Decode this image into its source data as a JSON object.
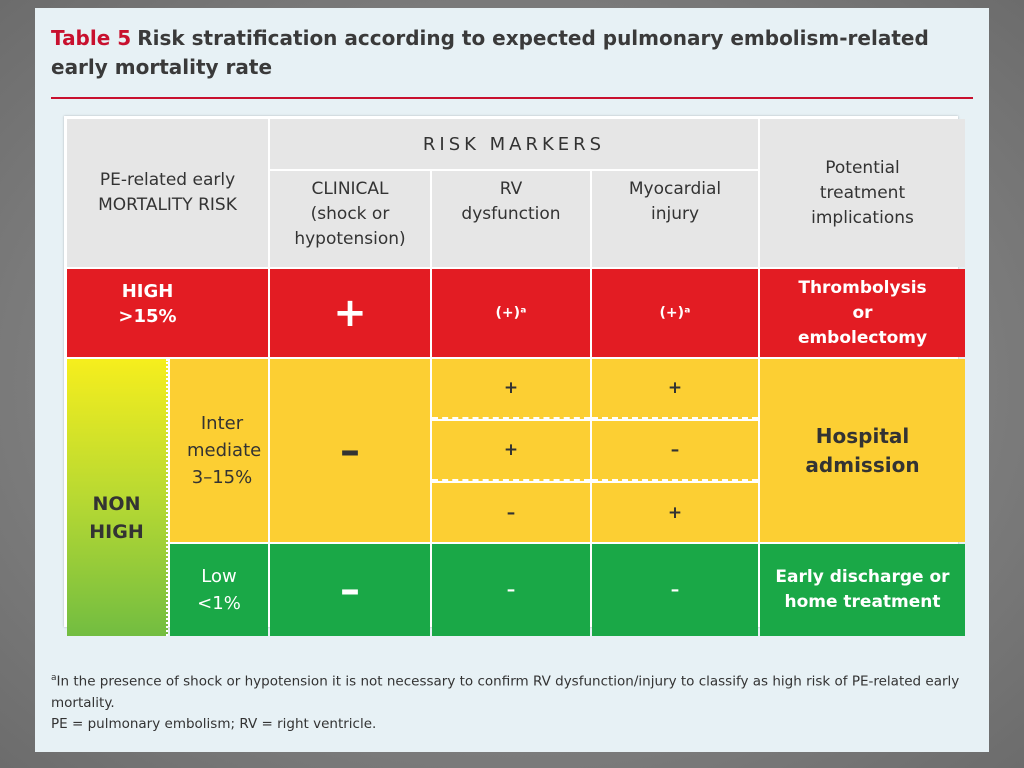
{
  "title": {
    "table_no": "Table 5",
    "text": "Risk stratification according to expected pulmonary embolism-related early mortality rate"
  },
  "header": {
    "risk_col": "PE-related early MORTALITY RISK",
    "risk_markers": "RISK MARKERS",
    "clinical": "CLINICAL (shock or hypotension)",
    "rv": "RV dysfunction",
    "myo": "Myocardial injury",
    "treatment": "Potential treatment implications"
  },
  "high": {
    "label": "HIGH",
    "range": ">15%",
    "clinical": "+",
    "rv": "(+)ᵃ",
    "myo": "(+)ᵃ",
    "treatment": "Thrombolysis or embolectomy"
  },
  "nonhigh": {
    "label": "NON HIGH",
    "intermediate": {
      "label": "Inter mediate",
      "range": "3–15%",
      "clinical": "–",
      "rows": [
        {
          "rv": "+",
          "myo": "+"
        },
        {
          "rv": "+",
          "myo": "–"
        },
        {
          "rv": "–",
          "myo": "+"
        }
      ],
      "treatment": "Hospital admission"
    },
    "low": {
      "label": "Low",
      "range": "<1%",
      "clinical": "–",
      "rv": "–",
      "myo": "–",
      "treatment": "Early discharge or home treatment"
    }
  },
  "footnote": {
    "marker": "a",
    "text": "In the presence of shock or hypotension it is not necessary to confirm RV dysfunction/injury to classify as high risk of PE-related early mortality.",
    "abbrev": "PE = pulmonary embolism; RV = right ventricle."
  },
  "colors": {
    "title_accent": "#c8102e",
    "high": "#e31c23",
    "intermediate": "#fccf33",
    "low": "#1aa847",
    "header": "#e6e6e6"
  }
}
